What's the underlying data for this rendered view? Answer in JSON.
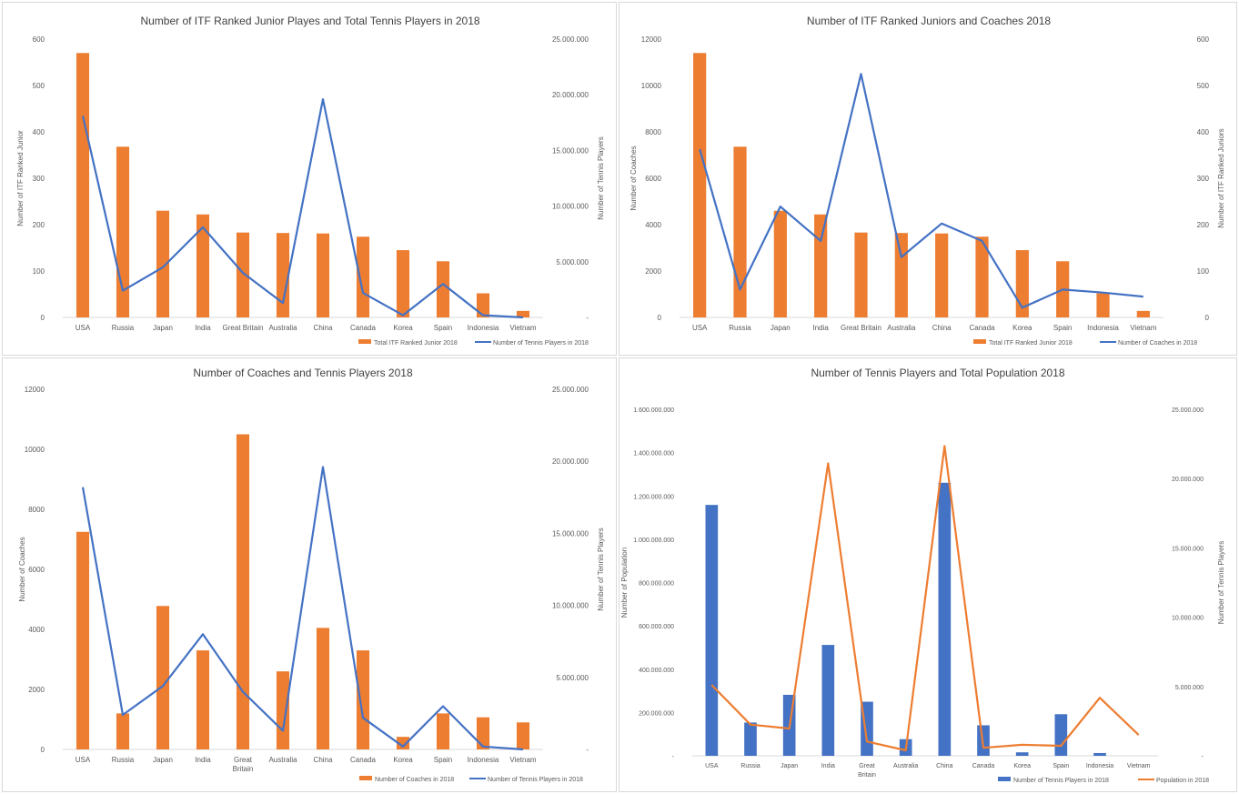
{
  "colors": {
    "orange": "#ED7D31",
    "blue": "#4472C4",
    "axis_text": "#595959",
    "title_text": "#404040",
    "gridline": "#d9d9d9",
    "border": "#d9d9d9"
  },
  "chart_data": [
    {
      "type": "bar",
      "title": "Number of ITF Ranked Junior Playes and Total Tennis Players in 2018",
      "categories": [
        "USA",
        "Russia",
        "Japan",
        "India",
        "Great Britain",
        "Australia",
        "China",
        "Canada",
        "Korea",
        "Spain",
        "Indonesia",
        "Vietnam"
      ],
      "ylabel": "Number of ITF Ranked Junior",
      "y2label": "Number of Tennis Players",
      "ylim": [
        0,
        600
      ],
      "yticks": [
        "0",
        "100",
        "200",
        "300",
        "400",
        "500",
        "600"
      ],
      "y2lim": [
        0,
        25000000
      ],
      "y2ticks": [
        "-",
        "5.000.000",
        "10.000.000",
        "15.000.000",
        "20.000.000",
        "25.000.000"
      ],
      "legend_position": "bottom-right",
      "series": [
        {
          "name": "Total ITF Ranked Junior 2018",
          "kind": "bar",
          "axis": "left",
          "color": "#ED7D31",
          "values": [
            570,
            368,
            230,
            222,
            183,
            182,
            181,
            174,
            145,
            121,
            52,
            14
          ]
        },
        {
          "name": "Number of Tennis Players in 2018",
          "kind": "line",
          "axis": "right",
          "color": "#4472C4",
          "values": [
            18100000,
            2400000,
            4500000,
            8100000,
            4000000,
            1300000,
            19600000,
            2200000,
            200000,
            3000000,
            200000,
            0
          ]
        }
      ]
    },
    {
      "type": "bar",
      "title": "Number of ITF Ranked Juniors and Coaches 2018",
      "categories": [
        "USA",
        "Russia",
        "Japan",
        "India",
        "Great Britain",
        "Australia",
        "China",
        "Canada",
        "Korea",
        "Spain",
        "Indonesia",
        "Vietnam"
      ],
      "ylabel": "Number of Coaches",
      "y2label": "Number of ITF Ranked Juniors",
      "ylim": [
        0,
        12000
      ],
      "yticks": [
        "0",
        "2000",
        "4000",
        "6000",
        "8000",
        "10000",
        "12000"
      ],
      "y2lim": [
        0,
        600
      ],
      "y2ticks": [
        "0",
        "100",
        "200",
        "300",
        "400",
        "500",
        "600"
      ],
      "legend_position": "bottom-right",
      "series": [
        {
          "name": "Total ITF Ranked Junior 2018",
          "kind": "bar",
          "axis": "right",
          "color": "#ED7D31",
          "values": [
            570,
            368,
            230,
            222,
            183,
            182,
            181,
            174,
            145,
            121,
            52,
            14
          ]
        },
        {
          "name": "Number of Coaches in 2018",
          "kind": "line",
          "axis": "left",
          "color": "#4472C4",
          "values": [
            7250,
            1200,
            4780,
            3300,
            10500,
            2600,
            4050,
            3300,
            420,
            1200,
            1070,
            900
          ]
        }
      ]
    },
    {
      "type": "bar",
      "title": "Number of Coaches and Tennis Players 2018",
      "categories": [
        "USA",
        "Russia",
        "Japan",
        "India",
        "Great Britain",
        "Australia",
        "China",
        "Canada",
        "Korea",
        "Spain",
        "Indonesia",
        "Vietnam"
      ],
      "ylabel": "Number of Coaches",
      "y2label": "Number of Tennis Players",
      "ylim": [
        0,
        12000
      ],
      "yticks": [
        "0",
        "2000",
        "4000",
        "6000",
        "8000",
        "10000",
        "12000"
      ],
      "y2lim": [
        0,
        25000000
      ],
      "y2ticks": [
        "-",
        "5.000.000",
        "10.000.000",
        "15.000.000",
        "20.000.000",
        "25.000.000"
      ],
      "legend_position": "bottom-right",
      "series": [
        {
          "name": "Number of Coaches in 2018",
          "kind": "bar",
          "axis": "left",
          "color": "#ED7D31",
          "values": [
            7250,
            1200,
            4780,
            3300,
            10500,
            2600,
            4050,
            3300,
            420,
            1200,
            1070,
            900
          ]
        },
        {
          "name": "Number of Tennis Players in 2018",
          "kind": "line",
          "axis": "right",
          "color": "#4472C4",
          "values": [
            18200000,
            2400000,
            4400000,
            8000000,
            4000000,
            1300000,
            19600000,
            2200000,
            200000,
            3000000,
            200000,
            0
          ]
        }
      ]
    },
    {
      "type": "bar",
      "title": "Number of Tennis Players and Total Population 2018",
      "categories": [
        "USA",
        "Russia",
        "Japan",
        "India",
        "Great Britain",
        "Australia",
        "China",
        "Canada",
        "Korea",
        "Spain",
        "Indonesia",
        "Vietnam"
      ],
      "ylabel": "Number of Population",
      "y2label": "Number of Tennis Players",
      "ylim": [
        0,
        1600000000
      ],
      "yticks": [
        "-",
        "200.000.000",
        "400.000.000",
        "600.000.000",
        "800.000.000",
        "1.000.000.000",
        "1.200.000.000",
        "1.400.000.000",
        "1.600.000.000"
      ],
      "y2lim": [
        0,
        25000000
      ],
      "y2ticks": [
        "-",
        "5.000.000",
        "10.000.000",
        "15.000.000",
        "20.000.000",
        "25.000.000"
      ],
      "legend_position": "bottom-right",
      "series": [
        {
          "name": "Number of Tennis Players in 2018",
          "kind": "bar",
          "axis": "right",
          "color": "#4472C4",
          "values": [
            18100000,
            2400000,
            4400000,
            8000000,
            3900000,
            1200000,
            19700000,
            2200000,
            250000,
            3000000,
            200000,
            0
          ]
        },
        {
          "name": "Population in 2018",
          "kind": "line",
          "axis": "left",
          "color": "#ED7D31",
          "values": [
            327000000,
            144000000,
            126000000,
            1350000000,
            66000000,
            25000000,
            1430000000,
            37000000,
            51000000,
            46000000,
            268000000,
            96000000
          ]
        }
      ]
    }
  ]
}
